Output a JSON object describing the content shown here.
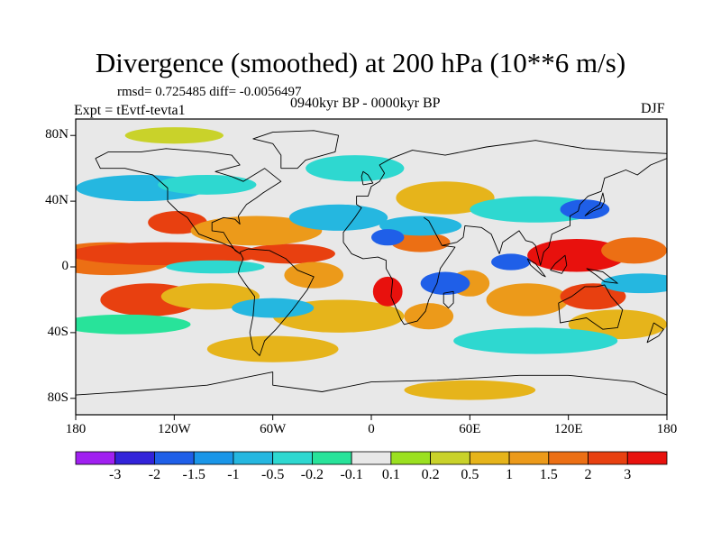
{
  "title": "Divergence (smoothed) at 200 hPa (10**6 m/s)",
  "stats": "rmsd= 0.725485 diff= -0.0056497",
  "period": "0940kyr BP - 0000kyr BP",
  "experiment": "Expt = tEvtf-tevta1",
  "season": "DJF",
  "map": {
    "projection": "cylindrical-equidistant",
    "lon_range": [
      -180,
      180
    ],
    "lat_range": [
      -90,
      90
    ],
    "lat_labels": [
      "80N",
      "40N",
      "0",
      "40S",
      "80S"
    ],
    "lat_values": [
      80,
      40,
      0,
      -40,
      -80
    ],
    "lon_labels": [
      "180",
      "120W",
      "60W",
      "0",
      "60E",
      "120E",
      "180"
    ],
    "lon_values": [
      -180,
      -120,
      -60,
      0,
      60,
      120,
      180
    ],
    "background_color": "#e8e8e8",
    "coastline_color": "#000000",
    "field_blobs": [
      {
        "lon": -160,
        "lat": 5,
        "rlon": 40,
        "rlat": 10,
        "value": 1.5
      },
      {
        "lon": -125,
        "lat": 8,
        "rlon": 60,
        "rlat": 7,
        "value": 2
      },
      {
        "lon": -50,
        "lat": 8,
        "rlon": 28,
        "rlat": 6,
        "value": 2
      },
      {
        "lon": -118,
        "lat": 27,
        "rlon": 18,
        "rlat": 7,
        "value": 2
      },
      {
        "lon": -70,
        "lat": 22,
        "rlon": 40,
        "rlat": 9,
        "value": 1
      },
      {
        "lon": -135,
        "lat": -20,
        "rlon": 30,
        "rlat": 10,
        "value": 2
      },
      {
        "lon": -98,
        "lat": -18,
        "rlon": 30,
        "rlat": 8,
        "value": 0.5
      },
      {
        "lon": -35,
        "lat": -5,
        "rlon": 18,
        "rlat": 8,
        "value": 1
      },
      {
        "lon": -20,
        "lat": -30,
        "rlon": 40,
        "rlat": 10,
        "value": 0.5
      },
      {
        "lon": 10,
        "lat": -15,
        "rlon": 9,
        "rlat": 9,
        "value": 3
      },
      {
        "lon": 30,
        "lat": 15,
        "rlon": 18,
        "rlat": 6,
        "value": 1.5
      },
      {
        "lon": 35,
        "lat": -30,
        "rlon": 15,
        "rlat": 8,
        "value": 1
      },
      {
        "lon": 60,
        "lat": -10,
        "rlon": 12,
        "rlat": 8,
        "value": 1
      },
      {
        "lon": 95,
        "lat": -20,
        "rlon": 25,
        "rlat": 10,
        "value": 1
      },
      {
        "lon": 125,
        "lat": 7,
        "rlon": 30,
        "rlat": 10,
        "value": 3
      },
      {
        "lon": 135,
        "lat": -18,
        "rlon": 20,
        "rlat": 8,
        "value": 2
      },
      {
        "lon": 160,
        "lat": 10,
        "rlon": 20,
        "rlat": 8,
        "value": 1.5
      },
      {
        "lon": 45,
        "lat": 42,
        "rlon": 30,
        "rlat": 10,
        "value": 0.5
      },
      {
        "lon": 150,
        "lat": -35,
        "rlon": 30,
        "rlat": 9,
        "value": 0.5
      },
      {
        "lon": -60,
        "lat": -50,
        "rlon": 40,
        "rlat": 8,
        "value": 0.5
      },
      {
        "lon": 60,
        "lat": -75,
        "rlon": 40,
        "rlat": 6,
        "value": 0.5
      },
      {
        "lon": -120,
        "lat": 80,
        "rlon": 30,
        "rlat": 5,
        "value": 0.2
      },
      {
        "lon": -140,
        "lat": 48,
        "rlon": 40,
        "rlat": 8,
        "value": -1
      },
      {
        "lon": -100,
        "lat": 50,
        "rlon": 30,
        "rlat": 6,
        "value": -0.5
      },
      {
        "lon": -20,
        "lat": 30,
        "rlon": 30,
        "rlat": 8,
        "value": -1
      },
      {
        "lon": 30,
        "lat": 25,
        "rlon": 25,
        "rlat": 6,
        "value": -1
      },
      {
        "lon": 10,
        "lat": 18,
        "rlon": 10,
        "rlat": 5,
        "value": -2
      },
      {
        "lon": 85,
        "lat": 3,
        "rlon": 12,
        "rlat": 5,
        "value": -2
      },
      {
        "lon": 45,
        "lat": -10,
        "rlon": 15,
        "rlat": 7,
        "value": -2
      },
      {
        "lon": -95,
        "lat": 0,
        "rlon": 30,
        "rlat": 4,
        "value": -0.5
      },
      {
        "lon": -60,
        "lat": -25,
        "rlon": 25,
        "rlat": 6,
        "value": -1
      },
      {
        "lon": 100,
        "lat": 35,
        "rlon": 40,
        "rlat": 8,
        "value": -0.5
      },
      {
        "lon": 130,
        "lat": 35,
        "rlon": 15,
        "rlat": 6,
        "value": -2
      },
      {
        "lon": 165,
        "lat": -10,
        "rlon": 25,
        "rlat": 6,
        "value": -1
      },
      {
        "lon": -10,
        "lat": 60,
        "rlon": 30,
        "rlat": 8,
        "value": -0.5
      },
      {
        "lon": -150,
        "lat": -35,
        "rlon": 40,
        "rlat": 6,
        "value": -0.2
      },
      {
        "lon": 100,
        "lat": -45,
        "rlon": 50,
        "rlat": 8,
        "value": -0.5
      }
    ]
  },
  "colorbar": {
    "labels": [
      "-3",
      "-2",
      "-1.5",
      "-1",
      "-0.5",
      "-0.2",
      "-0.1",
      "0.1",
      "0.2",
      "0.5",
      "1",
      "1.5",
      "2",
      "3"
    ],
    "bins": [
      {
        "lo": -99,
        "hi": -3,
        "color": "#a020f0"
      },
      {
        "lo": -3,
        "hi": -2,
        "color": "#3223d9"
      },
      {
        "lo": -2,
        "hi": -1.5,
        "color": "#1f5fe8"
      },
      {
        "lo": -1.5,
        "hi": -1,
        "color": "#1a96e8"
      },
      {
        "lo": -1,
        "hi": -0.5,
        "color": "#25b7e0"
      },
      {
        "lo": -0.5,
        "hi": -0.2,
        "color": "#2ed8d0"
      },
      {
        "lo": -0.2,
        "hi": -0.1,
        "color": "#28e39a"
      },
      {
        "lo": -0.1,
        "hi": 0.1,
        "color": "#e8e8e8"
      },
      {
        "lo": 0.1,
        "hi": 0.2,
        "color": "#9be020"
      },
      {
        "lo": 0.2,
        "hi": 0.5,
        "color": "#c9d22a"
      },
      {
        "lo": 0.5,
        "hi": 1,
        "color": "#e6b41b"
      },
      {
        "lo": 1,
        "hi": 1.5,
        "color": "#ec9a1a"
      },
      {
        "lo": 1.5,
        "hi": 2,
        "color": "#ec6f14"
      },
      {
        "lo": 2,
        "hi": 3,
        "color": "#e84010"
      },
      {
        "lo": 3,
        "hi": 99,
        "color": "#e8110d"
      }
    ]
  }
}
